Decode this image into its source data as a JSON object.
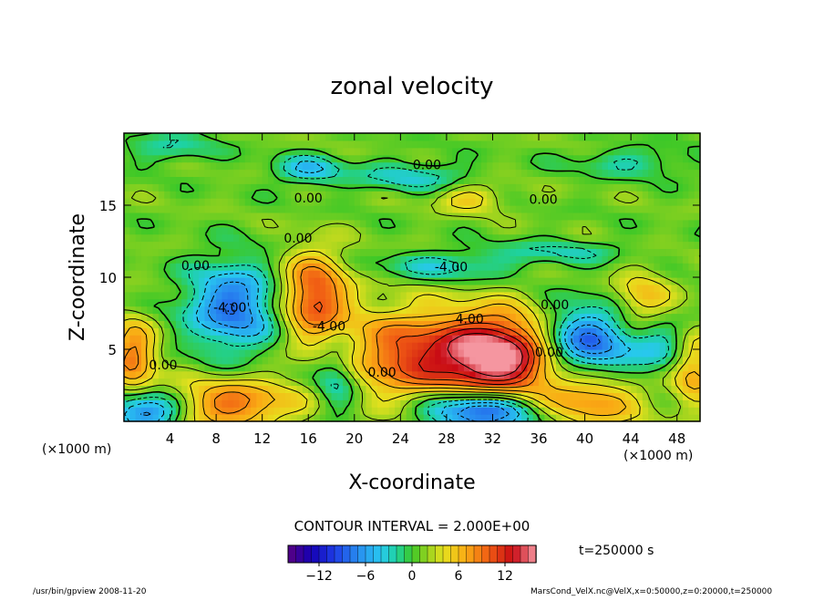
{
  "chart_data": {
    "type": "heatmap",
    "title": "zonal velocity",
    "xlabel": "X-coordinate",
    "ylabel": "Z-coordinate",
    "x_unit_left": "(×1000 m)",
    "x_unit_right": "(×1000 m)",
    "xlim": [
      0,
      50
    ],
    "ylim": [
      0,
      20
    ],
    "x_ticks": [
      "4",
      "8",
      "12",
      "16",
      "20",
      "24",
      "28",
      "32",
      "36",
      "40",
      "44",
      "48"
    ],
    "y_ticks": [
      "5",
      "10",
      "15"
    ],
    "contour_interval_text": "CONTOUR INTERVAL = 2.000E+00",
    "colorbar_ticks": [
      "-12",
      "-6",
      "0",
      "6",
      "12"
    ],
    "colorbar_range": [
      -16,
      16
    ],
    "time_label": "t=250000 s",
    "contour_labels": [
      {
        "text": "0.00",
        "x": 26.3,
        "z": 17.5
      },
      {
        "text": "0.00",
        "x": 16.0,
        "z": 15.2
      },
      {
        "text": "0.00",
        "x": 36.4,
        "z": 15.1
      },
      {
        "text": "0.00",
        "x": 15.1,
        "z": 12.4
      },
      {
        "text": "0.00",
        "x": 6.2,
        "z": 10.5
      },
      {
        "text": "-4.00",
        "x": 28.4,
        "z": 10.4
      },
      {
        "text": "0.00",
        "x": 37.4,
        "z": 7.8
      },
      {
        "text": "4.00",
        "x": 30.0,
        "z": 6.8
      },
      {
        "text": "-4.00",
        "x": 17.8,
        "z": 6.3
      },
      {
        "text": "-4.00",
        "x": 9.2,
        "z": 7.6
      },
      {
        "text": "0.00",
        "x": 3.4,
        "z": 3.6
      },
      {
        "text": "0.00",
        "x": 22.4,
        "z": 3.1
      },
      {
        "text": "0.00",
        "x": 36.9,
        "z": 4.5
      }
    ],
    "features": [
      {
        "x": 32.5,
        "z": 4.5,
        "v": 16,
        "rx": 5.0,
        "rz": 3.0
      },
      {
        "x": 24.5,
        "z": 4.6,
        "v": 9,
        "rx": 5.5,
        "rz": 3.2
      },
      {
        "x": 16.5,
        "z": 8.7,
        "v": 10,
        "rx": 3.0,
        "rz": 3.0
      },
      {
        "x": 9.5,
        "z": 1.2,
        "v": 8,
        "rx": 5.5,
        "rz": 1.8
      },
      {
        "x": 40.5,
        "z": 1.5,
        "v": 7,
        "rx": 4.5,
        "rz": 2.0
      },
      {
        "x": 0.8,
        "z": 4.5,
        "v": 8,
        "rx": 2.0,
        "rz": 2.5
      },
      {
        "x": 49.5,
        "z": 3.5,
        "v": 6,
        "rx": 2.0,
        "rz": 2.5
      },
      {
        "x": 9.5,
        "z": 8.0,
        "v": -9,
        "rx": 4.0,
        "rz": 3.0
      },
      {
        "x": 40.0,
        "z": 5.5,
        "v": -10,
        "rx": 4.0,
        "rz": 2.5
      },
      {
        "x": 31.0,
        "z": 0.8,
        "v": -12,
        "rx": 5.0,
        "rz": 1.5
      },
      {
        "x": 2.0,
        "z": 0.7,
        "v": -10,
        "rx": 3.0,
        "rz": 1.3
      },
      {
        "x": 18.5,
        "z": 3.0,
        "v": -5,
        "rx": 2.0,
        "rz": 2.5
      },
      {
        "x": 25.0,
        "z": 17.0,
        "v": -4,
        "rx": 5.0,
        "rz": 1.0
      },
      {
        "x": 16.0,
        "z": 17.5,
        "v": -5,
        "rx": 3.0,
        "rz": 1.0
      },
      {
        "x": 28.0,
        "z": 10.8,
        "v": -4,
        "rx": 6.0,
        "rz": 1.0
      },
      {
        "x": 38.0,
        "z": 11.8,
        "v": -3,
        "rx": 6.0,
        "rz": 0.8
      },
      {
        "x": 30.0,
        "z": 15.5,
        "v": 4,
        "rx": 3.0,
        "rz": 1.0
      },
      {
        "x": 45.0,
        "z": 8.5,
        "v": 5,
        "rx": 2.5,
        "rz": 2.0
      },
      {
        "x": 46.5,
        "z": 5.0,
        "v": -4,
        "rx": 2.5,
        "rz": 2.0
      },
      {
        "x": 4.0,
        "z": 19.0,
        "v": -3,
        "rx": 4.0,
        "rz": 1.0
      },
      {
        "x": 44.0,
        "z": 18.0,
        "v": -3,
        "rx": 5.0,
        "rz": 1.0
      }
    ],
    "grid": false,
    "colormap": "rainbow"
  },
  "footer": {
    "left": "/usr/bin/gpview  2008-11-20",
    "right": "MarsCond_VelX.nc@VelX,x=0:50000,z=0:20000,t=250000"
  },
  "colors": {
    "frame": "#000000",
    "background": "#ffffff"
  }
}
